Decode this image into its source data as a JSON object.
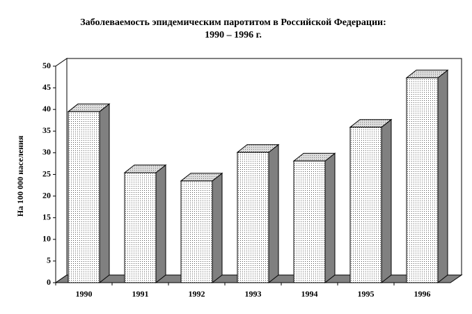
{
  "chart_data": {
    "type": "bar3d",
    "title": "Заболеваемость эпидемическим паротитом в Российской Федерации:",
    "subtitle": "1990 – 1996 г.",
    "y_label": "На 100 000 населения",
    "categories": [
      "1990",
      "1991",
      "1992",
      "1993",
      "1994",
      "1995",
      "1996"
    ],
    "values": [
      39.5,
      25.4,
      23.5,
      30.1,
      28.1,
      35.9,
      47.3
    ],
    "color": "#ffffff",
    "side_color": "#808080",
    "floor_color": "#808080",
    "ylim": [
      0,
      50
    ],
    "yticks": [
      0,
      5,
      10,
      15,
      20,
      25,
      30,
      35,
      40,
      45,
      50
    ]
  }
}
